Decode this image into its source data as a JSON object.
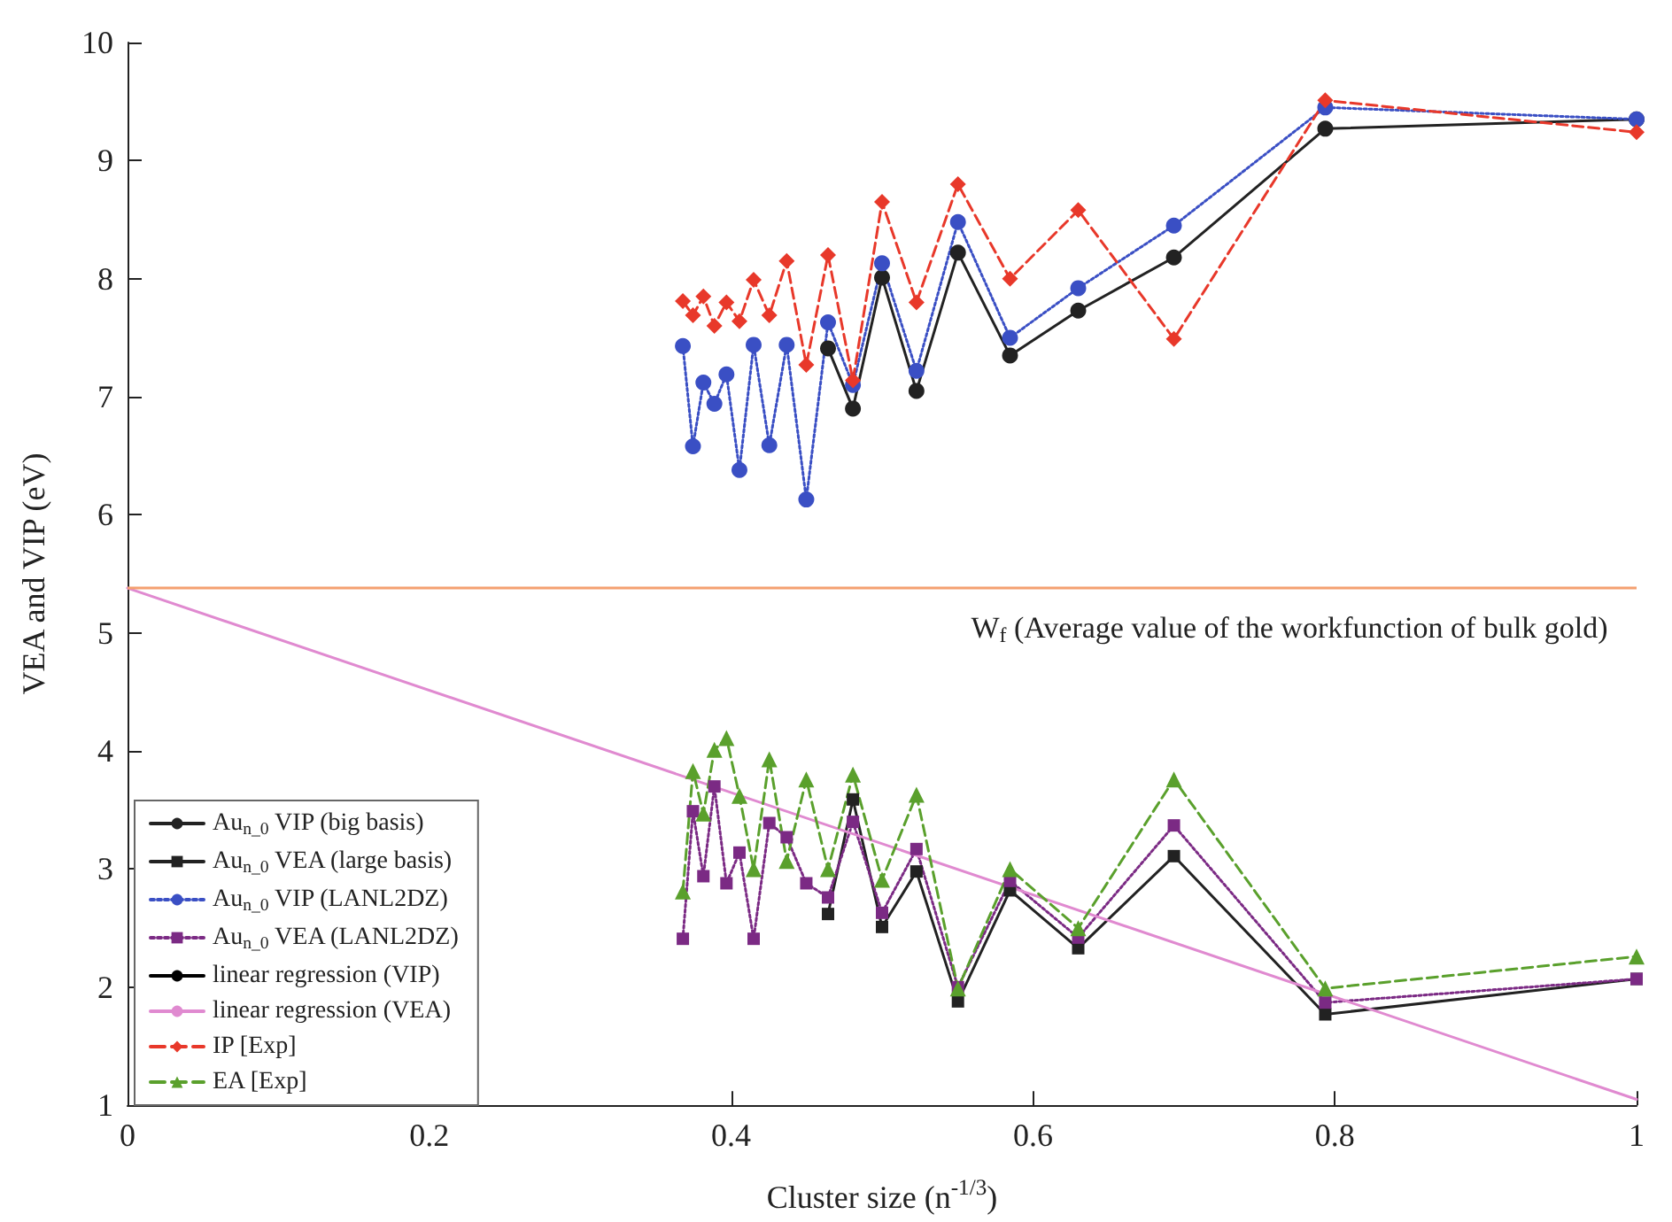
{
  "chart_data": {
    "type": "line",
    "xlabel": "Cluster size (n$^{-1/3}$)",
    "ylabel": "VEA and VIP (eV)",
    "x": [
      0.368,
      0.3747,
      0.3816,
      0.3889,
      0.3969,
      0.4055,
      0.4149,
      0.4253,
      0.4368,
      0.4498,
      0.4642,
      0.4807,
      0.5,
      0.5228,
      0.5503,
      0.5848,
      0.63,
      0.6934,
      0.7937,
      1
    ],
    "series": [
      {
        "name": "Au$_{n_0}$ VIP (big basis)",
        "type": "line",
        "color": "#222222",
        "marker": "circle",
        "line_style": "solid",
        "x": [
          0.4642,
          0.4807,
          0.5,
          0.5228,
          0.5503,
          0.5848,
          0.63,
          0.6934,
          0.7937,
          1
        ],
        "values": [
          7.41,
          6.9,
          8.01,
          7.05,
          8.22,
          7.35,
          7.73,
          8.18,
          9.27,
          9.35
        ]
      },
      {
        "name": "Au$_{n_0}$ VEA (large basis)",
        "type": "line",
        "color": "#222222",
        "marker": "square",
        "line_style": "solid",
        "x": [
          0.4642,
          0.4807,
          0.5,
          0.5228,
          0.5503,
          0.5848,
          0.63,
          0.6934,
          0.7937,
          1
        ],
        "values": [
          2.62,
          3.59,
          2.51,
          2.98,
          1.88,
          2.82,
          2.33,
          3.11,
          1.77,
          2.07
        ]
      },
      {
        "name": "Au$_{n_0}$ VIP (LANL2DZ)",
        "type": "line",
        "color": "#3a4fc4",
        "marker": "circle",
        "line_style": "dotted",
        "values": [
          7.43,
          6.58,
          7.12,
          6.94,
          7.19,
          6.38,
          7.44,
          6.59,
          7.44,
          6.13,
          7.63,
          7.1,
          8.13,
          7.22,
          8.48,
          7.5,
          7.92,
          8.45,
          9.45,
          9.35
        ]
      },
      {
        "name": "Au$_{n_0}$ VEA (LANL2DZ)",
        "type": "line",
        "color": "#7b2a84",
        "marker": "square",
        "line_style": "dotted",
        "values": [
          2.41,
          3.49,
          2.94,
          3.7,
          2.88,
          3.14,
          2.41,
          3.39,
          3.27,
          2.88,
          2.76,
          3.4,
          2.63,
          3.17,
          2.0,
          2.9,
          2.42,
          3.37,
          1.87,
          2.07
        ]
      },
      {
        "name": "linear regression (VIP)",
        "color": "#000000",
        "marker": "none",
        "line_style": "solid",
        "values": [
          null,
          null,
          null,
          null,
          null,
          null,
          null,
          null,
          null,
          null,
          null,
          null,
          null,
          null,
          null,
          null,
          null,
          null,
          null,
          null
        ]
      },
      {
        "name": "linear regression (VEA)",
        "type": "line",
        "color": "#e08ad0",
        "marker": "none",
        "line_style": "solid",
        "x": [
          0,
          1
        ],
        "values": [
          5.38,
          1.05
        ]
      },
      {
        "name": "IP [Exp]",
        "type": "line",
        "color": "#e8382a",
        "marker": "diamond",
        "line_style": "dashed",
        "values": [
          7.81,
          7.69,
          7.85,
          7.6,
          7.8,
          7.64,
          7.99,
          7.69,
          8.15,
          7.27,
          8.2,
          7.14,
          8.65,
          7.8,
          8.8,
          8.0,
          8.58,
          7.49,
          9.51,
          9.24
        ]
      },
      {
        "name": "EA [Exp]",
        "type": "line",
        "color": "#5aa02c",
        "marker": "triangle",
        "line_style": "dashed",
        "values": [
          2.81,
          3.83,
          3.47,
          4.01,
          4.11,
          3.62,
          3.0,
          3.93,
          3.07,
          3.76,
          3.0,
          3.8,
          2.91,
          3.63,
          1.99,
          3.0,
          2.5,
          3.76,
          1.99,
          2.26
        ]
      }
    ],
    "ref_lines": [
      {
        "axis": "y",
        "value": 5.38,
        "label": "W$_{f}$ (Average value of the workfunction of bulk gold)",
        "color": "#f4a070"
      }
    ],
    "xlim": [
      0,
      1
    ],
    "xticks": [
      0,
      0.2,
      0.4,
      0.6,
      0.8,
      1
    ],
    "ylim": [
      1,
      10
    ],
    "yticks": [
      1,
      2,
      3,
      4,
      5,
      6,
      7,
      8,
      9,
      10
    ],
    "grid": false,
    "legend": "bottom left"
  }
}
